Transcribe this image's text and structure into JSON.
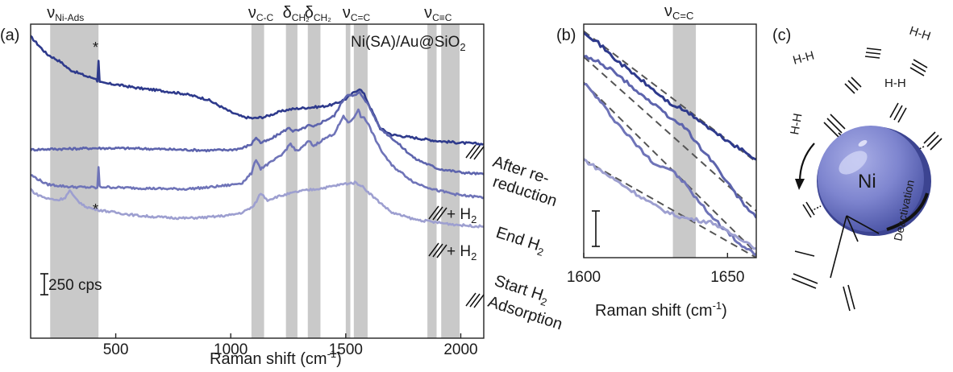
{
  "panels": {
    "a": "(a)",
    "b": "(b)",
    "c": "(c)"
  },
  "chart_data": [
    {
      "type": "line",
      "panel": "(a)",
      "title": "Ni(SA)/Au@SiO",
      "title_sub": "2",
      "xlabel": "Raman shift (cm",
      "xlabel_sup": "-1",
      "xlabel_close": ")",
      "xlim": [
        130,
        2100
      ],
      "xticks": [
        500,
        1000,
        1500,
        2000
      ],
      "ylim": [
        0,
        1000
      ],
      "scalebar": {
        "value": 250,
        "label": "250 cps"
      },
      "star": "*",
      "bands": [
        {
          "label": "ν",
          "sub": "Ni-Ads",
          "ranges": [
            [
              215,
              425
            ]
          ]
        },
        {
          "label": "ν",
          "sub": "C-C",
          "ranges": [
            [
              1090,
              1145
            ]
          ]
        },
        {
          "label": "δ",
          "sub": "CH₂",
          "ranges": [
            [
              1240,
              1290
            ]
          ]
        },
        {
          "label": "δ",
          "sub": "CH₂",
          "ranges": [
            [
              1335,
              1390
            ]
          ]
        },
        {
          "label": "ν",
          "sub": "C=C",
          "ranges": [
            [
              1500,
              1520
            ],
            [
              1535,
              1595
            ]
          ]
        },
        {
          "label": "ν",
          "sub": "C≡C",
          "ranges": [
            [
              1855,
              1895
            ]
          ]
        },
        {
          "label": "",
          "sub": "",
          "ranges": [
            [
              1915,
              1995
            ]
          ]
        },
        {
          "label": "",
          "sub": "",
          "ranges": [
            [
              270,
              360
            ]
          ]
        }
      ],
      "series": [
        {
          "name": "After re-reduction",
          "label_lines": [
            "After re-",
            "reduction"
          ],
          "tag": "",
          "color": "#2e3a8c",
          "x": [
            130,
            200,
            260,
            300,
            380,
            410,
            420,
            425,
            430,
            445,
            500,
            600,
            700,
            800,
            900,
            1000,
            1050,
            1100,
            1150,
            1200,
            1250,
            1300,
            1350,
            1400,
            1450,
            1500,
            1540,
            1560,
            1580,
            1600,
            1650,
            1700,
            1800,
            1900,
            2000,
            2100
          ],
          "y": [
            960,
            905,
            880,
            855,
            832,
            828,
            820,
            885,
            815,
            812,
            808,
            796,
            788,
            778,
            760,
            720,
            705,
            700,
            705,
            718,
            728,
            732,
            735,
            738,
            745,
            762,
            785,
            795,
            776,
            745,
            668,
            648,
            638,
            628,
            622,
            618
          ]
        },
        {
          "name": "End H2",
          "label_lines": [
            "End H",
            "2"
          ],
          "tag": "",
          "color": "#5d64ad",
          "x": [
            130,
            200,
            300,
            400,
            500,
            600,
            700,
            800,
            900,
            1000,
            1050,
            1090,
            1110,
            1130,
            1170,
            1220,
            1255,
            1270,
            1300,
            1340,
            1360,
            1400,
            1450,
            1490,
            1510,
            1530,
            1545,
            1560,
            1580,
            1600,
            1650,
            1700,
            1800,
            1900,
            2000,
            2100
          ],
          "y": [
            600,
            602,
            603,
            605,
            605,
            604,
            602,
            600,
            598,
            600,
            605,
            618,
            640,
            622,
            632,
            655,
            670,
            660,
            662,
            678,
            672,
            690,
            708,
            760,
            778,
            770,
            775,
            782,
            764,
            740,
            668,
            638,
            572,
            540,
            528,
            522
          ]
        },
        {
          "name": "Start H2",
          "label_lines": [
            "Start H",
            "2",
            "Adsorption"
          ],
          "tag": "",
          "color": "#6f74b8",
          "x": [
            130,
            200,
            300,
            400,
            420,
            425,
            430,
            500,
            600,
            700,
            800,
            900,
            1000,
            1050,
            1090,
            1110,
            1130,
            1170,
            1220,
            1260,
            1280,
            1300,
            1340,
            1360,
            1400,
            1450,
            1490,
            1510,
            1530,
            1555,
            1565,
            1580,
            1600,
            1650,
            1700,
            1800,
            1900,
            2000,
            2100
          ],
          "y": [
            520,
            490,
            482,
            480,
            478,
            545,
            482,
            480,
            478,
            476,
            475,
            480,
            488,
            495,
            525,
            570,
            540,
            558,
            582,
            620,
            598,
            600,
            628,
            612,
            632,
            652,
            705,
            688,
            695,
            730,
            704,
            705,
            678,
            602,
            550,
            495,
            470,
            455,
            448
          ]
        },
        {
          "name": "Start H2 adsorption (lowest)",
          "label_lines": [],
          "tag": "",
          "color": "#9d9fd0",
          "x": [
            130,
            150,
            200,
            250,
            280,
            300,
            320,
            360,
            400,
            430,
            500,
            600,
            700,
            800,
            900,
            1000,
            1050,
            1100,
            1130,
            1160,
            1200,
            1300,
            1400,
            1500,
            1540,
            1560,
            1580,
            1620,
            1700,
            1800,
            1900,
            2000,
            2100
          ],
          "y": [
            475,
            460,
            445,
            440,
            448,
            470,
            448,
            422,
            412,
            408,
            400,
            390,
            385,
            382,
            385,
            392,
            400,
            420,
            462,
            440,
            450,
            468,
            478,
            492,
            495,
            490,
            478,
            450,
            400,
            378,
            368,
            360,
            355
          ]
        }
      ],
      "annotations": [
        {
          "series": "After re-reduction",
          "text": ""
        },
        {
          "series": "End H2",
          "text": "+ H",
          "sub": "2"
        },
        {
          "series": "Start H2",
          "text": "+ H",
          "sub": "2"
        }
      ]
    },
    {
      "type": "line",
      "panel": "(b)",
      "xlabel": "Raman shift (cm",
      "xlabel_sup": "-1",
      "xlabel_close": ")",
      "xlim": [
        1600,
        1660
      ],
      "xticks": [
        1600,
        1650
      ],
      "ylim": [
        0,
        100
      ],
      "band": {
        "label": "ν",
        "sub": "C=C",
        "range": [
          1631,
          1639
        ]
      },
      "series": [
        {
          "name": "After re-reduction",
          "color": "#2e3a8c",
          "x": [
            1600,
            1605,
            1610,
            1615,
            1620,
            1625,
            1630,
            1635,
            1640,
            1645,
            1650,
            1655,
            1660
          ],
          "y": [
            97,
            92,
            86,
            81,
            76,
            71,
            66,
            63,
            59,
            54,
            50,
            46,
            42
          ]
        },
        {
          "name": "End H2",
          "color": "#5d64ad",
          "x": [
            1600,
            1605,
            1610,
            1615,
            1620,
            1625,
            1630,
            1635,
            1640,
            1645,
            1650,
            1655,
            1660
          ],
          "y": [
            86,
            84,
            80,
            75,
            70,
            65,
            60,
            56,
            48,
            41,
            32,
            24,
            17
          ]
        },
        {
          "name": "Start H2",
          "color": "#6f74b8",
          "x": [
            1600,
            1605,
            1610,
            1615,
            1620,
            1625,
            1630,
            1635,
            1640,
            1645,
            1650,
            1655,
            1660
          ],
          "y": [
            75,
            68,
            60,
            53,
            46,
            40,
            38,
            32,
            24,
            17,
            11,
            5,
            1
          ]
        },
        {
          "name": "Start H2 adsorption (lowest)",
          "color": "#9d9fd0",
          "x": [
            1600,
            1605,
            1610,
            1615,
            1620,
            1625,
            1630,
            1635,
            1640,
            1645,
            1650,
            1655,
            1660
          ],
          "y": [
            42,
            38,
            34,
            30,
            26,
            22,
            19,
            17,
            16,
            15,
            11,
            8,
            4
          ]
        }
      ],
      "fits": [
        {
          "series": "After re-reduction",
          "y0": 97,
          "y1": 41
        },
        {
          "series": "End H2",
          "y0": 86,
          "y1": 20
        },
        {
          "series": "Start H2",
          "y0": 75,
          "y1": 2
        },
        {
          "series": "Start H2 adsorption (lowest)",
          "y0": 42,
          "y1": 0
        }
      ]
    }
  ],
  "schematic": {
    "panel": "(c)",
    "particle_label": "Ni",
    "deactivation_label": "Deactivation",
    "h2_labels": [
      "H-H",
      "H-H",
      "H-H",
      "H-H"
    ]
  }
}
